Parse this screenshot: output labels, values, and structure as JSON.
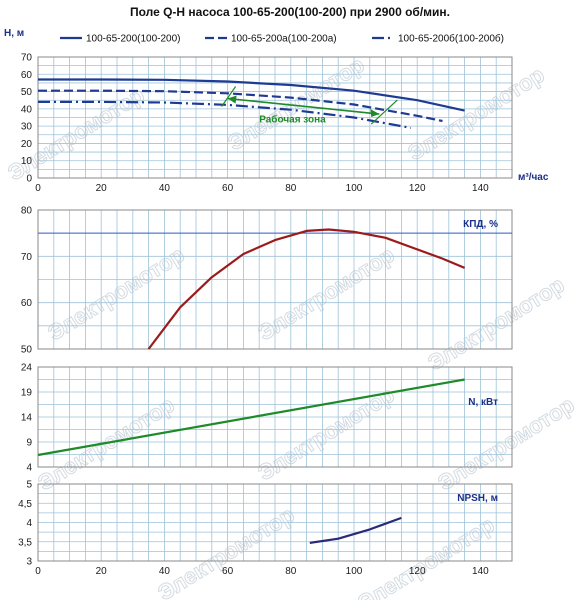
{
  "title": "Поле Q-H насоса 100-65-200(100-200) при 2900 об/мин.",
  "watermark": "Электромотор",
  "colors": {
    "grid": "#9ec3d9",
    "h_series": "#1f3a93",
    "efficiency": "#9b1b1b",
    "power": "#1f8a2a",
    "npsh": "#2a2a7a",
    "work_zone": "#1f8a2a",
    "ref_line": "#3a5fcd"
  },
  "chart_data": [
    {
      "type": "line",
      "ylabel": "H, м",
      "xlabel": "м³/час",
      "xlim": [
        0,
        150
      ],
      "ylim": [
        0,
        70
      ],
      "x_ticks": [
        "0",
        "20",
        "40",
        "60",
        "80",
        "100",
        "120",
        "140"
      ],
      "y_ticks": [
        "0",
        "10",
        "20",
        "30",
        "40",
        "50",
        "60",
        "70"
      ],
      "legend_position": "top",
      "series": [
        {
          "name": "100-65-200(100-200)",
          "style": "solid",
          "x": [
            0,
            20,
            40,
            60,
            80,
            100,
            120,
            135
          ],
          "y": [
            57,
            57,
            56.8,
            55.8,
            53.8,
            50.5,
            45,
            39
          ]
        },
        {
          "name": "100-65-200а(100-200а)",
          "style": "dashed",
          "x": [
            0,
            20,
            40,
            60,
            80,
            100,
            120,
            128
          ],
          "y": [
            50.5,
            50.5,
            50.2,
            49,
            46.5,
            42.5,
            36,
            33
          ]
        },
        {
          "name": "100-65-200б(100-200б)",
          "style": "dashdot",
          "x": [
            0,
            20,
            40,
            60,
            80,
            100,
            118
          ],
          "y": [
            44,
            44,
            43.7,
            42.3,
            39.5,
            35,
            29
          ]
        }
      ],
      "annotations": [
        {
          "text": "Рабочая зона",
          "x": 70,
          "y": 32
        }
      ],
      "work_zone": [
        [
          60,
          46
        ],
        [
          108,
          37
        ]
      ]
    },
    {
      "type": "line",
      "ylabel": "КПД, %",
      "xlim": [
        0,
        150
      ],
      "ylim": [
        50,
        80
      ],
      "y_ticks": [
        "50",
        "60",
        "70",
        "80"
      ],
      "reference_y": 75,
      "series": [
        {
          "name": "КПД, %",
          "x": [
            35,
            45,
            55,
            65,
            75,
            85,
            92,
            100,
            110,
            120,
            128,
            135
          ],
          "y": [
            50,
            59,
            65.5,
            70.5,
            73.5,
            75.5,
            75.8,
            75.3,
            74,
            71.5,
            69.5,
            67.5
          ]
        }
      ]
    },
    {
      "type": "line",
      "ylabel": "N, кВт",
      "xlim": [
        0,
        150
      ],
      "ylim": [
        4,
        24
      ],
      "y_ticks": [
        "4",
        "9",
        "14",
        "19",
        "24"
      ],
      "series": [
        {
          "name": "N, кВт",
          "x": [
            0,
            135
          ],
          "y": [
            6.4,
            21.5
          ]
        }
      ]
    },
    {
      "type": "line",
      "ylabel": "NPSH, м",
      "xlim": [
        0,
        150
      ],
      "ylim": [
        3,
        5
      ],
      "x_ticks": [
        "0",
        "20",
        "40",
        "60",
        "80",
        "100",
        "120",
        "140"
      ],
      "y_ticks": [
        "3",
        "3,5",
        "4",
        "4,5",
        "5"
      ],
      "series": [
        {
          "name": "NPSH, м",
          "x": [
            86,
            95,
            105,
            115
          ],
          "y": [
            3.47,
            3.58,
            3.82,
            4.12
          ]
        }
      ]
    }
  ]
}
